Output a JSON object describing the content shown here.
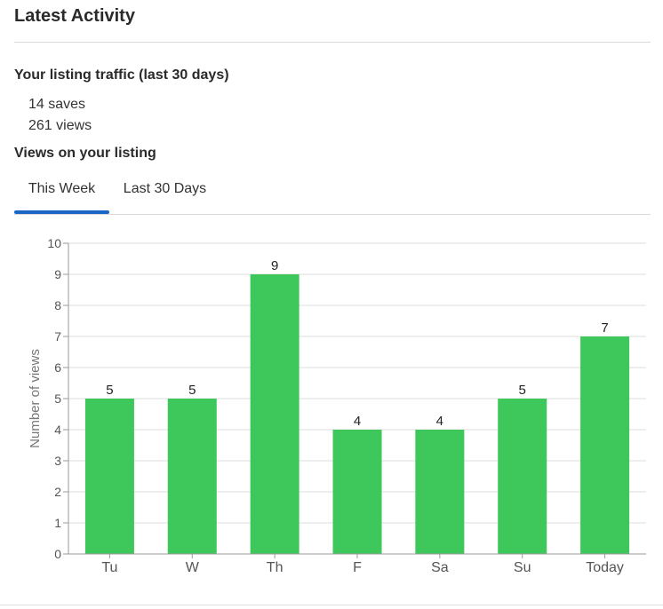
{
  "card": {
    "title": "Latest Activity"
  },
  "traffic": {
    "heading": "Your listing traffic (last 30 days)",
    "saves": "14 saves",
    "views": "261 views"
  },
  "views_section": {
    "heading": "Views on your listing",
    "tabs": [
      {
        "label": "This Week",
        "active": true
      },
      {
        "label": "Last 30 Days",
        "active": false
      }
    ]
  },
  "colors": {
    "accent": "#1a66c7",
    "bar": "#3ec75a"
  },
  "chart_data": {
    "type": "bar",
    "categories": [
      "Tu",
      "W",
      "Th",
      "F",
      "Sa",
      "Su",
      "Today"
    ],
    "values": [
      5,
      5,
      9,
      4,
      4,
      5,
      7
    ],
    "title": "",
    "xlabel": "",
    "ylabel": "Number of views",
    "ylim": [
      0,
      10
    ],
    "yticks": [
      0,
      1,
      2,
      3,
      4,
      5,
      6,
      7,
      8,
      9,
      10
    ],
    "grid": true,
    "data_labels": true
  }
}
